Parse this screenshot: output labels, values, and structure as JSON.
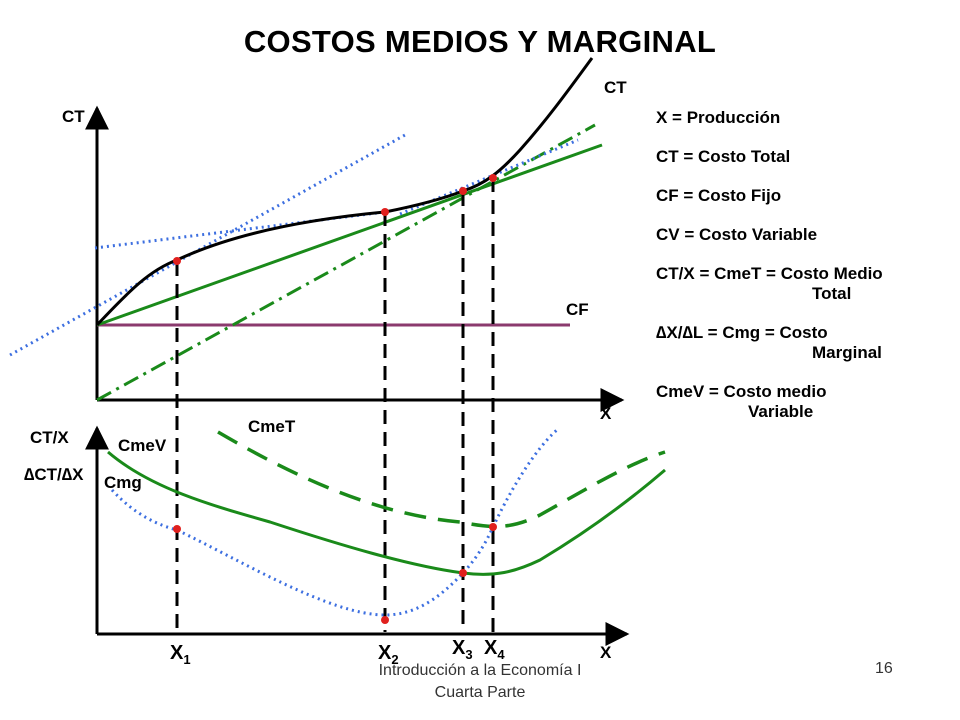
{
  "slide": {
    "title": "COSTOS MEDIOS Y  MARGINAL",
    "footer_line1": "Introducción a la Economía I",
    "footer_line2": "Cuarta Parte",
    "page_number": "16"
  },
  "top_chart": {
    "y_axis_label": "CT",
    "x_axis_label": "X",
    "curve_labels": {
      "ct": "CT",
      "cf": "CF"
    }
  },
  "bottom_chart": {
    "y_axis_label_1": "CT/X",
    "y_axis_label_2": "∆CT/∆X",
    "x_axis_label": "X",
    "curve_labels": {
      "cmet": "CmeT",
      "cmev": "CmeV",
      "cmg": "Cmg"
    }
  },
  "x_markers": [
    {
      "base": "X",
      "sub": "1"
    },
    {
      "base": "X",
      "sub": "2"
    },
    {
      "base": "X",
      "sub": "3"
    },
    {
      "base": "X",
      "sub": "4"
    }
  ],
  "legend": [
    {
      "line1": "X = Producción",
      "line2": ""
    },
    {
      "line1": "CT = Costo Total",
      "line2": ""
    },
    {
      "line1": "CF = Costo Fijo",
      "line2": ""
    },
    {
      "line1": "CV = Costo Variable",
      "line2": ""
    },
    {
      "line1": "CT/X = CmeT = Costo Medio",
      "line2": "Total"
    },
    {
      "line1": "∆X/∆L = Cmg = Costo",
      "line2": "Marginal"
    },
    {
      "line1": "CmeV = Costo medio",
      "line2": "Variable"
    }
  ],
  "colors": {
    "axis": "#000000",
    "ct_curve": "#000000",
    "green_lines": "#1a8a1a",
    "cf_line": "#8b3a6e",
    "blue_dotted": "#3d6fe0",
    "points": "#e0201e"
  }
}
